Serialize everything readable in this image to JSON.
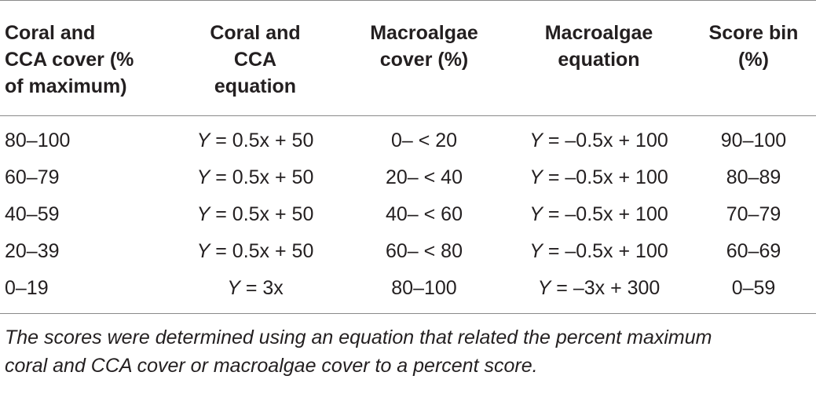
{
  "table": {
    "headers": [
      {
        "line1": "Coral and",
        "line2": "CCA cover (%",
        "line3": "of maximum)"
      },
      {
        "line1": "Coral and",
        "line2": "CCA",
        "line3": "equation"
      },
      {
        "line1": "Macroalgae",
        "line2": "cover (%)",
        "line3": ""
      },
      {
        "line1": "Macroalgae",
        "line2": "equation",
        "line3": ""
      },
      {
        "line1": "Score bin",
        "line2": "(%)",
        "line3": ""
      }
    ],
    "rows": [
      {
        "coral_cover": "80–100",
        "coral_eq_var": "Y",
        "coral_eq_rest": " = 0.5x + 50",
        "macro_cover": "0– < 20",
        "macro_eq_var": "Y",
        "macro_eq_rest": " = –0.5x + 100",
        "score_bin": "90–100"
      },
      {
        "coral_cover": "60–79",
        "coral_eq_var": "Y",
        "coral_eq_rest": " = 0.5x + 50",
        "macro_cover": "20– < 40",
        "macro_eq_var": "Y",
        "macro_eq_rest": " = –0.5x + 100",
        "score_bin": "80–89"
      },
      {
        "coral_cover": "40–59",
        "coral_eq_var": "Y",
        "coral_eq_rest": " = 0.5x + 50",
        "macro_cover": "40– < 60",
        "macro_eq_var": "Y",
        "macro_eq_rest": " = –0.5x + 100",
        "score_bin": "70–79"
      },
      {
        "coral_cover": "20–39",
        "coral_eq_var": "Y",
        "coral_eq_rest": " = 0.5x + 50",
        "macro_cover": "60– < 80",
        "macro_eq_var": "Y",
        "macro_eq_rest": " = –0.5x + 100",
        "score_bin": "60–69"
      },
      {
        "coral_cover": "0–19",
        "coral_eq_var": "Y",
        "coral_eq_rest": " = 3x",
        "macro_cover": "80–100",
        "macro_eq_var": "Y",
        "macro_eq_rest": " = –3x + 300",
        "score_bin": "0–59"
      }
    ]
  },
  "footnote": {
    "line1": "The scores were determined using an equation that related the percent maximum",
    "line2": "coral and CCA cover or macroalgae cover to a percent score."
  },
  "colors": {
    "text": "#231f20",
    "rule": "#8a8a8a",
    "background": "#ffffff"
  }
}
